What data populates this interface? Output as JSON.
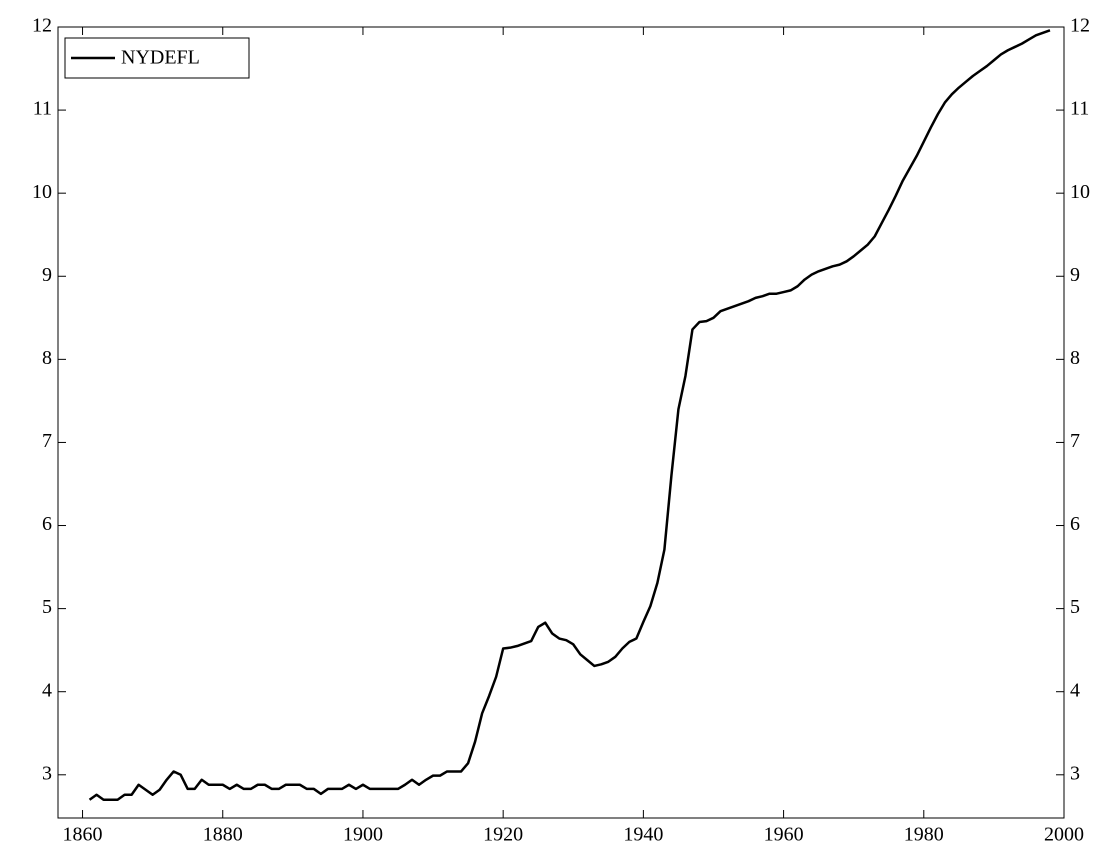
{
  "chart_data": {
    "type": "line",
    "xlim": [
      1856.5,
      2000
    ],
    "xticks": [
      1860,
      1880,
      1900,
      1920,
      1940,
      1960,
      1980,
      2000
    ],
    "ylim": [
      2.48,
      12
    ],
    "yticks": [
      3,
      4,
      5,
      6,
      7,
      8,
      9,
      10,
      11,
      12
    ],
    "right_axis_labels": true,
    "legend": "top-left",
    "x": [
      1861,
      1862,
      1863,
      1864,
      1865,
      1866,
      1867,
      1868,
      1869,
      1870,
      1871,
      1872,
      1873,
      1874,
      1875,
      1876,
      1877,
      1878,
      1879,
      1880,
      1881,
      1882,
      1883,
      1884,
      1885,
      1886,
      1887,
      1888,
      1889,
      1890,
      1891,
      1892,
      1893,
      1894,
      1895,
      1896,
      1897,
      1898,
      1899,
      1900,
      1901,
      1902,
      1903,
      1904,
      1905,
      1906,
      1907,
      1908,
      1909,
      1910,
      1911,
      1912,
      1913,
      1914,
      1915,
      1916,
      1917,
      1918,
      1919,
      1920,
      1921,
      1922,
      1923,
      1924,
      1925,
      1926,
      1927,
      1928,
      1929,
      1930,
      1931,
      1932,
      1933,
      1934,
      1935,
      1936,
      1937,
      1938,
      1939,
      1940,
      1941,
      1942,
      1943,
      1944,
      1945,
      1946,
      1947,
      1948,
      1949,
      1950,
      1951,
      1952,
      1953,
      1954,
      1955,
      1956,
      1957,
      1958,
      1959,
      1960,
      1961,
      1962,
      1963,
      1964,
      1965,
      1966,
      1967,
      1968,
      1969,
      1970,
      1971,
      1972,
      1973,
      1974,
      1975,
      1976,
      1977,
      1978,
      1979,
      1980,
      1981,
      1982,
      1983,
      1984,
      1985,
      1986,
      1987,
      1988,
      1989,
      1990,
      1991,
      1992,
      1993,
      1994,
      1995,
      1996,
      1997,
      1998
    ],
    "series": [
      {
        "name": "NYDEFL",
        "color": "#000000",
        "values": [
          2.7,
          2.76,
          2.7,
          2.7,
          2.7,
          2.76,
          2.76,
          2.88,
          2.82,
          2.76,
          2.82,
          2.94,
          3.04,
          3.0,
          2.83,
          2.83,
          2.94,
          2.88,
          2.88,
          2.88,
          2.83,
          2.88,
          2.83,
          2.83,
          2.88,
          2.88,
          2.83,
          2.83,
          2.88,
          2.88,
          2.88,
          2.83,
          2.83,
          2.77,
          2.83,
          2.83,
          2.83,
          2.88,
          2.83,
          2.88,
          2.83,
          2.83,
          2.83,
          2.83,
          2.83,
          2.88,
          2.94,
          2.88,
          2.94,
          2.99,
          2.99,
          3.04,
          3.04,
          3.04,
          3.14,
          3.4,
          3.74,
          3.95,
          4.18,
          4.52,
          4.53,
          4.55,
          4.58,
          4.61,
          4.78,
          4.83,
          4.7,
          4.64,
          4.62,
          4.57,
          4.45,
          4.38,
          4.31,
          4.33,
          4.36,
          4.42,
          4.52,
          4.6,
          4.64,
          4.84,
          5.03,
          5.31,
          5.71,
          6.6,
          7.4,
          7.8,
          8.36,
          8.45,
          8.46,
          8.5,
          8.58,
          8.61,
          8.64,
          8.67,
          8.7,
          8.74,
          8.76,
          8.79,
          8.79,
          8.81,
          8.83,
          8.88,
          8.96,
          9.02,
          9.06,
          9.09,
          9.12,
          9.14,
          9.18,
          9.24,
          9.31,
          9.38,
          9.48,
          9.64,
          9.8,
          9.97,
          10.15,
          10.3,
          10.45,
          10.62,
          10.79,
          10.95,
          11.09,
          11.19,
          11.27,
          11.34,
          11.41,
          11.47,
          11.53,
          11.6,
          11.67,
          11.72,
          11.76,
          11.8,
          11.85,
          11.9,
          11.93,
          11.96
        ]
      }
    ]
  }
}
